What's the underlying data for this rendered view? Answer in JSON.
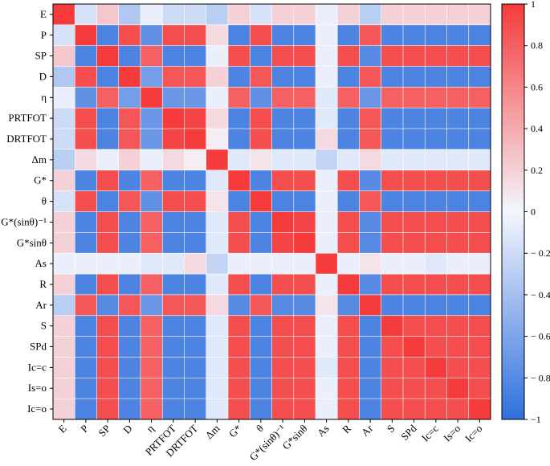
{
  "chart_data": {
    "type": "heatmap",
    "labels": [
      "E",
      "P",
      "SP",
      "D",
      "η",
      "PRTFOT",
      "DRTFOT",
      "Δm",
      "G*",
      "θ",
      "G*(sinθ)⁻¹",
      "G*sinθ",
      "As",
      "R",
      "Ar",
      "S",
      "SPd",
      "Ic=c",
      "Is=o",
      "Ic=o"
    ],
    "matrix": [
      [
        1.0,
        -0.15,
        0.25,
        -0.35,
        -0.05,
        -0.2,
        -0.2,
        -0.3,
        0.2,
        -0.15,
        0.2,
        0.2,
        -0.05,
        0.2,
        -0.3,
        0.2,
        0.2,
        0.2,
        0.2,
        0.2
      ],
      [
        -0.15,
        1.0,
        -0.85,
        0.9,
        -0.75,
        0.9,
        0.9,
        0.15,
        -0.85,
        0.9,
        -0.85,
        -0.85,
        -0.05,
        -0.85,
        0.85,
        -0.85,
        -0.85,
        -0.85,
        -0.85,
        -0.85
      ],
      [
        0.25,
        -0.85,
        1.0,
        -0.85,
        0.8,
        -0.85,
        -0.85,
        -0.05,
        0.9,
        -0.85,
        0.9,
        0.9,
        -0.05,
        0.9,
        -0.8,
        0.9,
        0.9,
        0.9,
        0.9,
        0.9
      ],
      [
        -0.35,
        0.9,
        -0.85,
        1.0,
        -0.65,
        0.85,
        0.85,
        0.2,
        -0.85,
        0.85,
        -0.85,
        -0.85,
        -0.05,
        -0.85,
        0.85,
        -0.85,
        -0.85,
        -0.85,
        -0.85,
        -0.85
      ],
      [
        -0.05,
        -0.75,
        0.8,
        -0.65,
        1.0,
        -0.7,
        -0.7,
        -0.05,
        0.8,
        -0.75,
        0.8,
        0.8,
        -0.1,
        0.8,
        -0.7,
        0.8,
        0.8,
        0.8,
        0.8,
        0.8
      ],
      [
        -0.2,
        0.9,
        -0.85,
        0.85,
        -0.7,
        1.0,
        0.95,
        0.15,
        -0.85,
        0.9,
        -0.85,
        -0.85,
        -0.1,
        -0.85,
        0.85,
        -0.85,
        -0.85,
        -0.85,
        -0.85,
        -0.85
      ],
      [
        -0.2,
        0.9,
        -0.85,
        0.85,
        -0.7,
        0.95,
        1.0,
        0.05,
        -0.85,
        0.9,
        -0.85,
        -0.85,
        0.15,
        -0.85,
        0.85,
        -0.85,
        -0.85,
        -0.85,
        -0.85,
        -0.85
      ],
      [
        -0.3,
        0.15,
        -0.05,
        0.2,
        -0.05,
        0.15,
        0.05,
        1.0,
        -0.1,
        0.1,
        -0.1,
        -0.1,
        -0.25,
        -0.1,
        0.15,
        -0.1,
        -0.1,
        -0.1,
        -0.1,
        -0.1
      ],
      [
        0.2,
        -0.85,
        0.9,
        -0.85,
        0.8,
        -0.85,
        -0.85,
        -0.1,
        1.0,
        -0.85,
        0.9,
        0.9,
        -0.05,
        0.9,
        -0.8,
        0.9,
        0.9,
        0.9,
        0.9,
        0.9
      ],
      [
        -0.15,
        0.9,
        -0.85,
        0.85,
        -0.75,
        0.9,
        0.9,
        0.1,
        -0.85,
        1.0,
        -0.85,
        -0.85,
        -0.05,
        -0.85,
        0.85,
        -0.85,
        -0.85,
        -0.85,
        -0.85,
        -0.85
      ],
      [
        0.2,
        -0.85,
        0.9,
        -0.85,
        0.8,
        -0.85,
        -0.85,
        -0.1,
        0.9,
        -0.85,
        1.0,
        0.95,
        -0.05,
        0.9,
        -0.8,
        0.9,
        0.9,
        0.9,
        0.9,
        0.9
      ],
      [
        0.2,
        -0.85,
        0.9,
        -0.85,
        0.8,
        -0.85,
        -0.85,
        -0.1,
        0.9,
        -0.85,
        0.95,
        1.0,
        -0.05,
        0.9,
        -0.8,
        0.9,
        0.9,
        0.9,
        0.9,
        0.9
      ],
      [
        -0.05,
        -0.05,
        -0.05,
        -0.05,
        -0.1,
        -0.1,
        0.15,
        -0.25,
        -0.05,
        -0.05,
        -0.05,
        -0.05,
        1.0,
        -0.05,
        0.1,
        -0.05,
        -0.05,
        -0.1,
        -0.05,
        -0.05
      ],
      [
        0.2,
        -0.85,
        0.9,
        -0.85,
        0.8,
        -0.85,
        -0.85,
        -0.1,
        0.9,
        -0.85,
        0.9,
        0.9,
        -0.05,
        1.0,
        -0.8,
        0.9,
        0.9,
        0.9,
        0.9,
        0.9
      ],
      [
        -0.3,
        0.85,
        -0.8,
        0.85,
        -0.7,
        0.85,
        0.85,
        0.15,
        -0.8,
        0.85,
        -0.8,
        -0.8,
        0.1,
        -0.8,
        1.0,
        -0.85,
        -0.85,
        -0.85,
        -0.85,
        -0.85
      ],
      [
        0.2,
        -0.85,
        0.9,
        -0.85,
        0.8,
        -0.85,
        -0.85,
        -0.1,
        0.9,
        -0.85,
        0.9,
        0.9,
        -0.05,
        0.9,
        -0.85,
        1.0,
        0.9,
        0.9,
        0.9,
        0.9
      ],
      [
        0.2,
        -0.85,
        0.9,
        -0.85,
        0.8,
        -0.85,
        -0.85,
        -0.1,
        0.9,
        -0.85,
        0.9,
        0.9,
        -0.05,
        0.9,
        -0.85,
        0.9,
        1.0,
        0.9,
        0.9,
        0.9
      ],
      [
        0.2,
        -0.85,
        0.9,
        -0.85,
        0.8,
        -0.85,
        -0.85,
        -0.1,
        0.9,
        -0.85,
        0.9,
        0.9,
        -0.1,
        0.9,
        -0.85,
        0.9,
        0.9,
        1.0,
        0.9,
        0.9
      ],
      [
        0.2,
        -0.85,
        0.9,
        -0.85,
        0.8,
        -0.85,
        -0.85,
        -0.1,
        0.9,
        -0.85,
        0.9,
        0.9,
        -0.05,
        0.9,
        -0.85,
        0.9,
        0.9,
        0.9,
        1.0,
        0.9
      ],
      [
        0.2,
        -0.85,
        0.9,
        -0.85,
        0.8,
        -0.85,
        -0.85,
        -0.1,
        0.9,
        -0.85,
        0.9,
        0.9,
        -0.05,
        0.9,
        -0.85,
        0.9,
        0.9,
        0.9,
        0.9,
        1.0
      ]
    ],
    "colorbar": {
      "range": [
        -1,
        1
      ],
      "ticks": [
        -1,
        -0.8,
        -0.6,
        -0.4,
        -0.2,
        0,
        0.2,
        0.4,
        0.6,
        0.8,
        1
      ],
      "tick_labels": [
        "−1",
        "− 0.8",
        "− 0.6",
        "− 0.4",
        "− 0.2",
        "0",
        "0.2",
        "0.4",
        "0.6",
        "0.8",
        "1"
      ]
    },
    "colors": {
      "negative": "#2f6fdc",
      "zero": "#f4f6fd",
      "positive": "#f53b3b"
    }
  }
}
